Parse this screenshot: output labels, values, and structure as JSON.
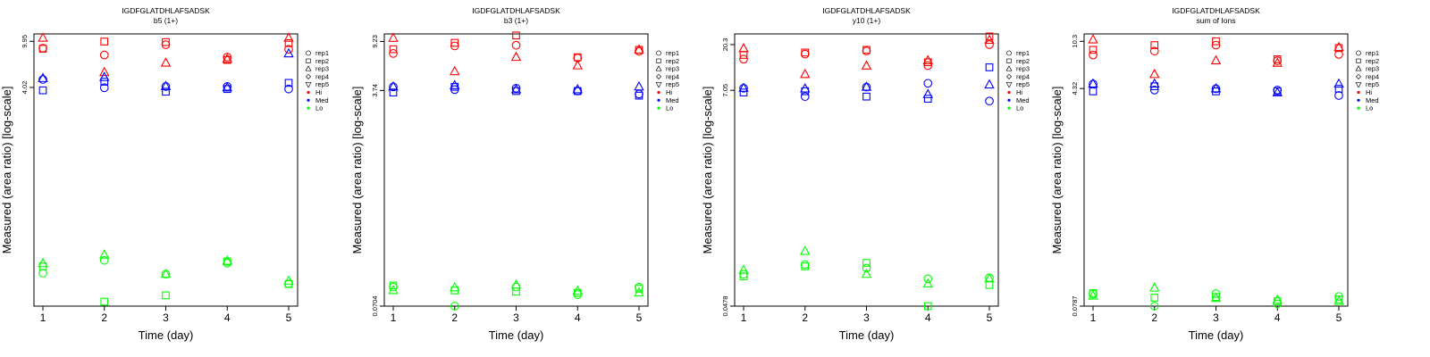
{
  "figure": {
    "peptide": "IGDFGLATDHLAFSADSK",
    "ylabel": "Measured (area ratio) [log-scale]",
    "xlabel": "Time (day)",
    "x_ticks": [
      "1",
      "2",
      "3",
      "4",
      "5"
    ]
  },
  "legend": {
    "replicates": [
      {
        "label": "rep1",
        "marker": "circle"
      },
      {
        "label": "rep2",
        "marker": "square"
      },
      {
        "label": "rep3",
        "marker": "triangle-up"
      },
      {
        "label": "rep4",
        "marker": "diamond"
      },
      {
        "label": "rep5",
        "marker": "triangle-down"
      }
    ],
    "levels": [
      {
        "label": "Hi",
        "color": "#ff0000"
      },
      {
        "label": "Med",
        "color": "#0000ff"
      },
      {
        "label": "Lo",
        "color": "#00ff00"
      }
    ]
  },
  "chart_data": [
    {
      "type": "scatter",
      "title": "IGDFGLATDHLAFSADSK",
      "subtitle": "b5 (1+)",
      "y_tick_labels": [
        "4.02",
        "9.95"
      ],
      "y_scale": "log",
      "series": [
        {
          "level": "Hi",
          "rep": "rep1",
          "x": [
            1,
            2,
            3,
            4,
            5
          ],
          "y": [
            8.7,
            7.6,
            9.3,
            7.3,
            8.5
          ]
        },
        {
          "level": "Hi",
          "rep": "rep2",
          "x": [
            1,
            2,
            3,
            4,
            5
          ],
          "y": [
            8.6,
            9.9,
            9.8,
            6.9,
            9.6
          ]
        },
        {
          "level": "Hi",
          "rep": "rep3",
          "x": [
            1,
            2,
            3,
            4,
            5
          ],
          "y": [
            10.6,
            5.4,
            6.5,
            7.0,
            10.6
          ]
        },
        {
          "level": "Med",
          "rep": "rep1",
          "x": [
            1,
            2,
            3,
            4,
            5
          ],
          "y": [
            4.7,
            4.0,
            4.1,
            4.1,
            3.9
          ]
        },
        {
          "level": "Med",
          "rep": "rep2",
          "x": [
            1,
            2,
            3,
            4,
            5
          ],
          "y": [
            3.8,
            4.5,
            3.7,
            3.9,
            4.4
          ]
        },
        {
          "level": "Med",
          "rep": "rep3",
          "x": [
            1,
            2,
            3,
            4,
            5
          ],
          "y": [
            4.8,
            4.9,
            4.1,
            4.0,
            7.8
          ]
        },
        {
          "level": "Lo",
          "rep": "rep1",
          "x": [
            1,
            2,
            3,
            4,
            5
          ],
          "y": [
            0.105,
            0.135,
            0.103,
            0.128,
            0.085
          ]
        },
        {
          "level": "Lo",
          "rep": "rep2",
          "x": [
            1,
            2,
            3,
            4,
            5
          ],
          "y": [
            0.12,
            0.06,
            0.068,
            0.132,
            0.085
          ]
        },
        {
          "level": "Lo",
          "rep": "rep3",
          "x": [
            1,
            2,
            3,
            4,
            5
          ],
          "y": [
            0.127,
            0.15,
            0.103,
            0.133,
            0.09
          ]
        }
      ]
    },
    {
      "type": "scatter",
      "title": "IGDFGLATDHLAFSADSK",
      "subtitle": "b3 (1+)",
      "y_tick_labels": [
        "0.0704",
        "3.74",
        "9.23"
      ],
      "y_scale": "log",
      "series": [
        {
          "level": "Hi",
          "rep": "rep1",
          "x": [
            1,
            2,
            3,
            4,
            5
          ],
          "y": [
            7.4,
            8.5,
            8.6,
            6.8,
            7.7
          ]
        },
        {
          "level": "Hi",
          "rep": "rep2",
          "x": [
            1,
            2,
            3,
            4,
            5
          ],
          "y": [
            8.0,
            9.0,
            10.3,
            6.9,
            7.9
          ]
        },
        {
          "level": "Hi",
          "rep": "rep3",
          "x": [
            1,
            2,
            3,
            4,
            5
          ],
          "y": [
            9.8,
            5.3,
            6.9,
            5.9,
            7.9
          ]
        },
        {
          "level": "Med",
          "rep": "rep1",
          "x": [
            1,
            2,
            3,
            4,
            5
          ],
          "y": [
            4.0,
            3.8,
            3.9,
            3.7,
            3.5
          ]
        },
        {
          "level": "Med",
          "rep": "rep2",
          "x": [
            1,
            2,
            3,
            4,
            5
          ],
          "y": [
            3.6,
            4.0,
            3.7,
            3.7,
            3.4
          ]
        },
        {
          "level": "Med",
          "rep": "rep3",
          "x": [
            1,
            2,
            3,
            4,
            5
          ],
          "y": [
            4.0,
            4.1,
            3.8,
            3.8,
            4.0
          ]
        },
        {
          "level": "Lo",
          "rep": "rep1",
          "x": [
            1,
            2,
            3,
            4,
            5
          ],
          "y": [
            0.1,
            0.0704,
            0.1,
            0.087,
            0.1
          ]
        },
        {
          "level": "Lo",
          "rep": "rep2",
          "x": [
            1,
            2,
            3,
            4,
            5
          ],
          "y": [
            0.103,
            0.094,
            0.092,
            0.09,
            0.097
          ]
        },
        {
          "level": "Lo",
          "rep": "rep3",
          "x": [
            1,
            2,
            3,
            4,
            5
          ],
          "y": [
            0.094,
            0.099,
            0.104,
            0.093,
            0.09
          ]
        }
      ]
    },
    {
      "type": "scatter",
      "title": "IGDFGLATDHLAFSADSK",
      "subtitle": "y10 (1+)",
      "y_tick_labels": [
        "0.0478",
        "7.05",
        "20.3"
      ],
      "y_scale": "log",
      "series": [
        {
          "level": "Hi",
          "rep": "rep1",
          "x": [
            1,
            2,
            3,
            4,
            5
          ],
          "y": [
            14.5,
            16.3,
            17.5,
            12.5,
            20.3
          ]
        },
        {
          "level": "Hi",
          "rep": "rep2",
          "x": [
            1,
            2,
            3,
            4,
            5
          ],
          "y": [
            16.0,
            16.9,
            18.0,
            13.5,
            24.5
          ]
        },
        {
          "level": "Hi",
          "rep": "rep3",
          "x": [
            1,
            2,
            3,
            4,
            5
          ],
          "y": [
            18.5,
            10.2,
            12.4,
            14.0,
            22.5
          ]
        },
        {
          "level": "Med",
          "rep": "rep1",
          "x": [
            1,
            2,
            3,
            4,
            5
          ],
          "y": [
            7.4,
            6.1,
            7.6,
            8.3,
            5.5
          ]
        },
        {
          "level": "Med",
          "rep": "rep2",
          "x": [
            1,
            2,
            3,
            4,
            5
          ],
          "y": [
            6.7,
            6.9,
            6.1,
            5.8,
            12.0
          ]
        },
        {
          "level": "Med",
          "rep": "rep3",
          "x": [
            1,
            2,
            3,
            4,
            5
          ],
          "y": [
            7.4,
            7.3,
            7.6,
            6.4,
            8.0
          ]
        },
        {
          "level": "Lo",
          "rep": "rep1",
          "x": [
            1,
            2,
            3,
            4,
            5
          ],
          "y": [
            0.1,
            0.125,
            0.115,
            0.09,
            0.092
          ]
        },
        {
          "level": "Lo",
          "rep": "rep2",
          "x": [
            1,
            2,
            3,
            4,
            5
          ],
          "y": [
            0.095,
            0.12,
            0.13,
            0.0478,
            0.078
          ]
        },
        {
          "level": "Lo",
          "rep": "rep3",
          "x": [
            1,
            2,
            3,
            4,
            5
          ],
          "y": [
            0.11,
            0.17,
            0.1,
            0.08,
            0.09
          ]
        }
      ]
    },
    {
      "type": "scatter",
      "title": "IGDFGLATDHLAFSADSK",
      "subtitle": "sum of Ions",
      "y_tick_labels": [
        "0.0787",
        "4.32",
        "10.3"
      ],
      "y_scale": "log",
      "series": [
        {
          "level": "Hi",
          "rep": "rep1",
          "x": [
            1,
            2,
            3,
            4,
            5
          ],
          "y": [
            8.0,
            8.6,
            9.6,
            7.2,
            8.1
          ]
        },
        {
          "level": "Hi",
          "rep": "rep2",
          "x": [
            1,
            2,
            3,
            4,
            5
          ],
          "y": [
            8.8,
            9.6,
            10.3,
            7.4,
            9.1
          ]
        },
        {
          "level": "Hi",
          "rep": "rep3",
          "x": [
            1,
            2,
            3,
            4,
            5
          ],
          "y": [
            10.6,
            5.6,
            7.2,
            6.9,
            9.2
          ]
        },
        {
          "level": "Med",
          "rep": "rep1",
          "x": [
            1,
            2,
            3,
            4,
            5
          ],
          "y": [
            4.7,
            4.2,
            4.3,
            4.2,
            3.8
          ]
        },
        {
          "level": "Med",
          "rep": "rep2",
          "x": [
            1,
            2,
            3,
            4,
            5
          ],
          "y": [
            4.1,
            4.5,
            4.1,
            4.1,
            4.3
          ]
        },
        {
          "level": "Med",
          "rep": "rep3",
          "x": [
            1,
            2,
            3,
            4,
            5
          ],
          "y": [
            4.7,
            4.7,
            4.3,
            4.0,
            4.7
          ]
        },
        {
          "level": "Lo",
          "rep": "rep1",
          "x": [
            1,
            2,
            3,
            4,
            5
          ],
          "y": [
            0.098,
            0.0787,
            0.099,
            0.082,
            0.094
          ]
        },
        {
          "level": "Lo",
          "rep": "rep2",
          "x": [
            1,
            2,
            3,
            4,
            5
          ],
          "y": [
            0.1,
            0.092,
            0.093,
            0.086,
            0.089
          ]
        },
        {
          "level": "Lo",
          "rep": "rep3",
          "x": [
            1,
            2,
            3,
            4,
            5
          ],
          "y": [
            0.095,
            0.11,
            0.091,
            0.088,
            0.086
          ]
        }
      ]
    }
  ]
}
